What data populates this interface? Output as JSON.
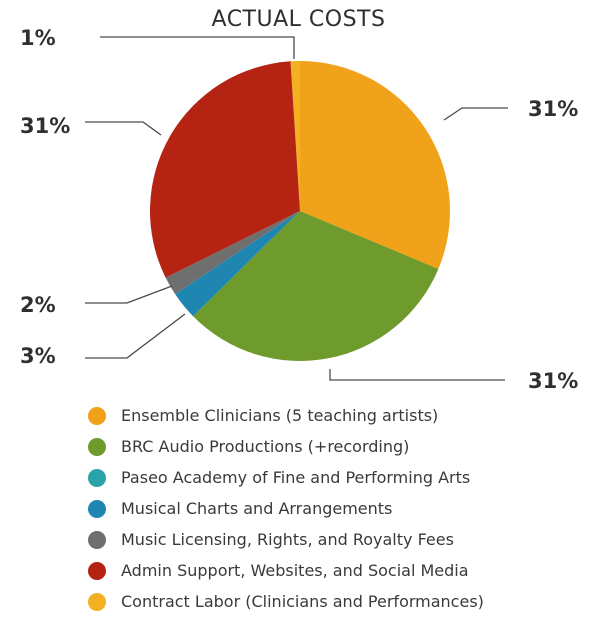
{
  "chart_data": {
    "type": "pie",
    "title": "ACTUAL COSTS",
    "series": [
      {
        "name": "Ensemble Clinicians (5 teaching artists)",
        "value": 31,
        "label": "31%",
        "color": "#f0a21a"
      },
      {
        "name": "BRC Audio Productions (+recording)",
        "value": 31,
        "label": "31%",
        "color": "#6f9a2c"
      },
      {
        "name": "Paseo Academy of Fine and Performing Arts",
        "value": 0,
        "label": "",
        "color": "#2aa3a8"
      },
      {
        "name": "Musical Charts and Arrangements",
        "value": 3,
        "label": "3%",
        "color": "#1f86b2"
      },
      {
        "name": "Music Licensing, Rights, and Royalty Fees",
        "value": 2,
        "label": "2%",
        "color": "#6f6f6f"
      },
      {
        "name": "Admin Support, Websites, and Social Media",
        "value": 31,
        "label": "31%",
        "color": "#b52313"
      },
      {
        "name": "Contract Labor (Clinicians and Performances)",
        "value": 1,
        "label": "1%",
        "color": "#f3b020"
      }
    ],
    "legend_position": "bottom"
  }
}
